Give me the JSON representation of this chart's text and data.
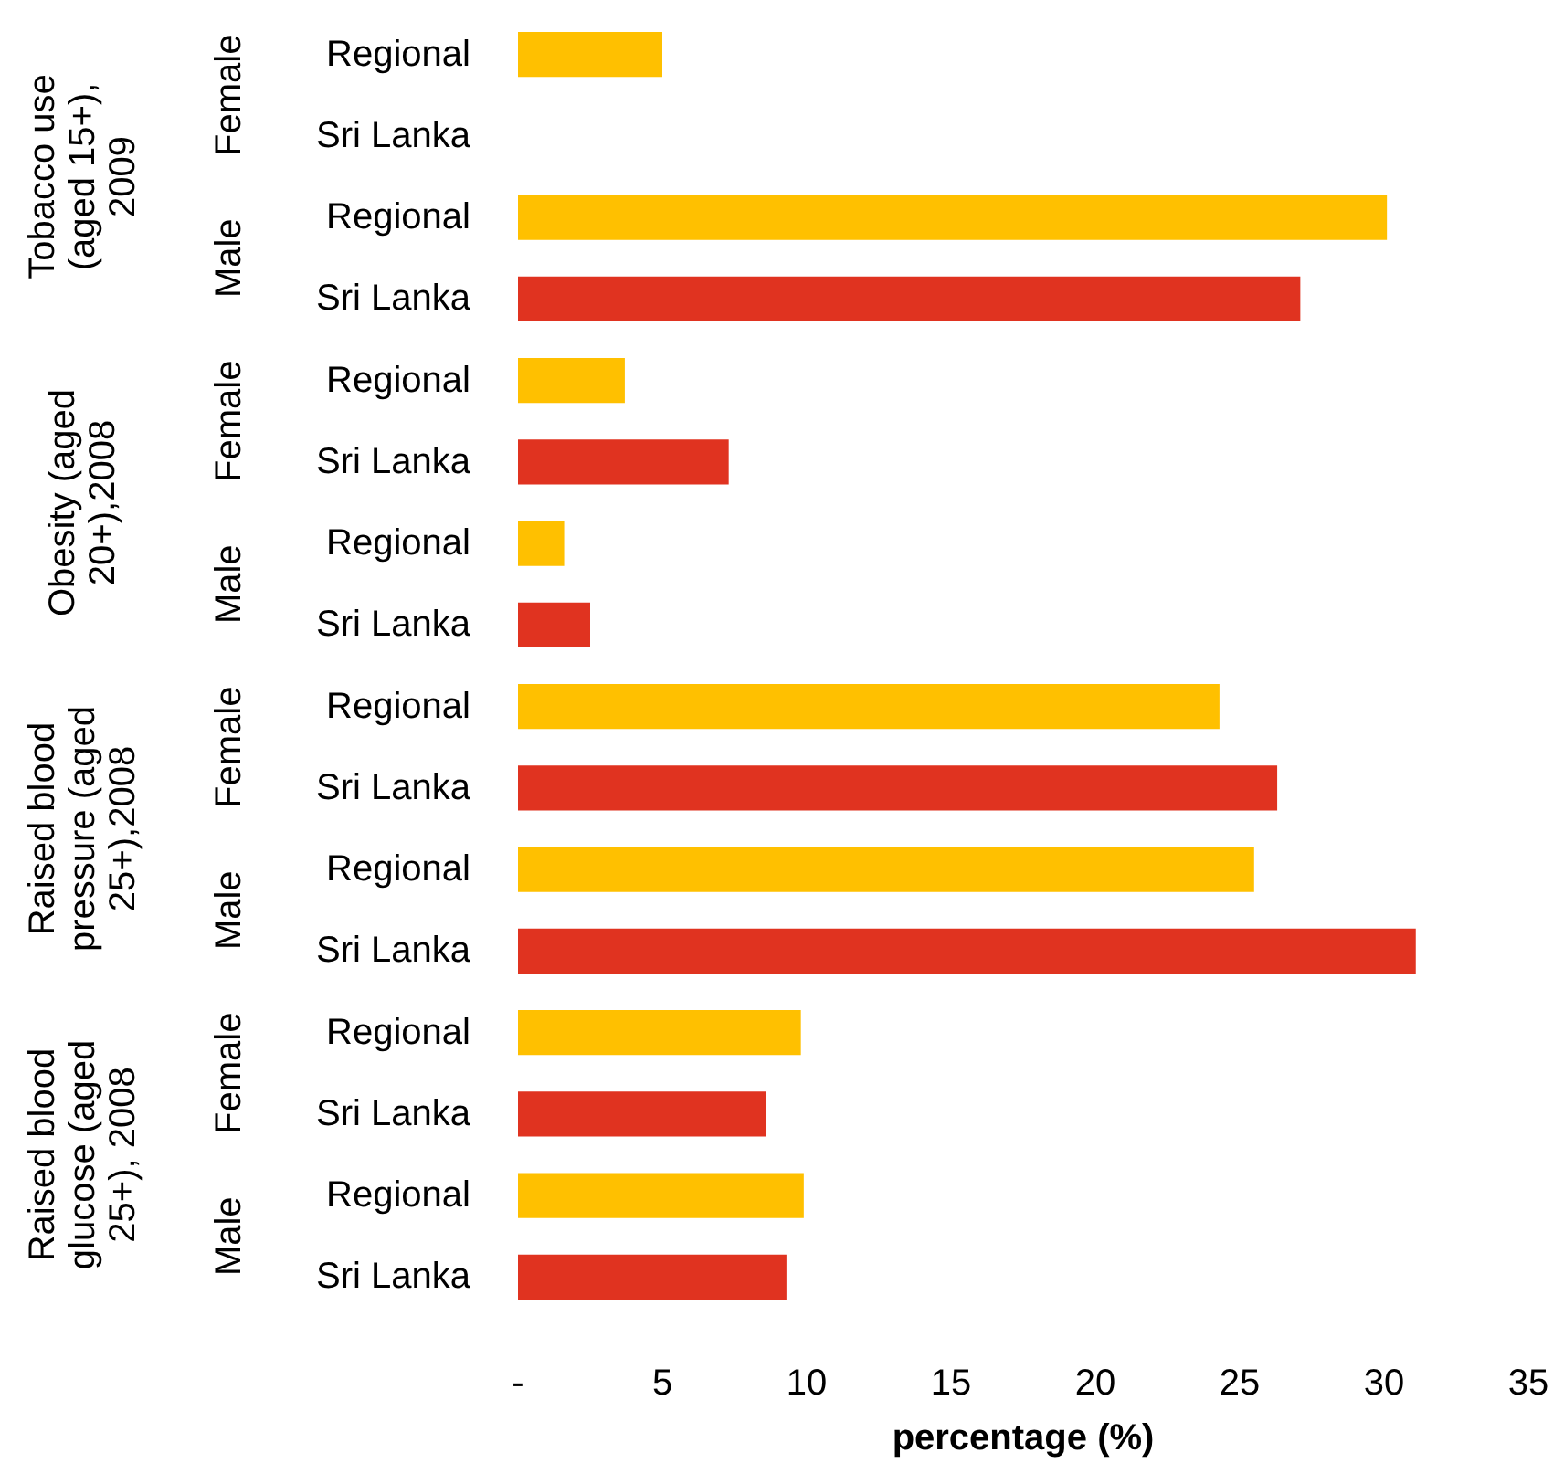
{
  "chart_data": {
    "type": "bar",
    "orientation": "horizontal",
    "xlabel": "percentage (%)",
    "categories": [
      "Regional",
      "Sri Lanka",
      "Regional",
      "Sri Lanka",
      "Regional",
      "Sri Lanka",
      "Regional",
      "Sri Lanka",
      "Regional",
      "Sri Lanka",
      "Regional",
      "Sri Lanka",
      "Regional",
      "Sri Lanka",
      "Regional",
      "Sri Lanka"
    ],
    "values": [
      5.0,
      null,
      30.1,
      27.1,
      3.7,
      7.3,
      1.6,
      2.5,
      24.3,
      26.3,
      25.5,
      31.1,
      9.8,
      8.6,
      9.9,
      9.3
    ],
    "colors": [
      "#ffc000",
      "#e03320",
      "#ffc000",
      "#e03320",
      "#ffc000",
      "#e03320",
      "#ffc000",
      "#e03320",
      "#ffc000",
      "#e03320",
      "#ffc000",
      "#e03320",
      "#ffc000",
      "#e03320",
      "#ffc000",
      "#e03320"
    ],
    "xlim": [
      0,
      35
    ],
    "xticks": [
      {
        "value": 0,
        "label": "-"
      },
      5,
      10,
      15,
      20,
      25,
      30,
      35
    ],
    "annotations": [
      "Tobacco use\n(aged 15+),\n2009",
      "Obesity (aged\n20+),2008",
      "Raised blood\npressure (aged\n25+),2008",
      "Raised blood\nglucose (aged\n25+), 2008",
      "Female",
      "Male",
      "Female",
      "Male",
      "Female",
      "Male",
      "Female",
      "Male"
    ],
    "grid": false
  }
}
